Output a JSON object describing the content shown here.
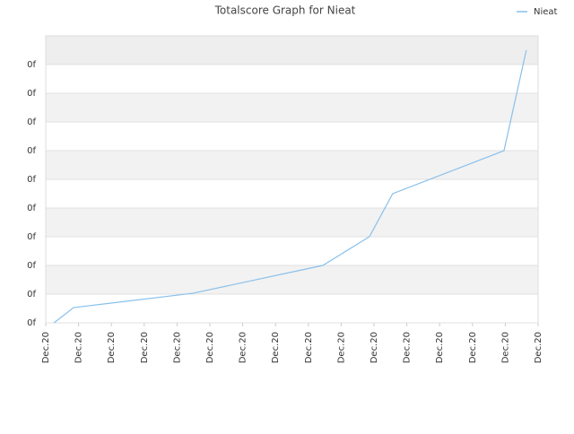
{
  "chart_data": {
    "type": "line",
    "title": "Totalscore Graph for Nieat",
    "x": [
      0.25,
      0.85,
      4.48,
      8.44,
      9.86,
      10.57,
      13.96,
      14.64
    ],
    "series": [
      {
        "name": "Nieat",
        "color": "#88c0eb",
        "values": [
          0,
          0.53,
          1.03,
          2,
          3,
          4.5,
          6,
          9.5
        ]
      }
    ],
    "xlim": [
      0,
      15
    ],
    "xticks": [
      {
        "value": 0,
        "label": "Dec.20"
      },
      {
        "value": 1,
        "label": "Dec.20"
      },
      {
        "value": 2,
        "label": "Dec.20"
      },
      {
        "value": 3,
        "label": "Dec.20"
      },
      {
        "value": 4,
        "label": "Dec.20"
      },
      {
        "value": 5,
        "label": "Dec.20"
      },
      {
        "value": 6,
        "label": "Dec.20"
      },
      {
        "value": 7,
        "label": "Dec.20"
      },
      {
        "value": 8,
        "label": "Dec.20"
      },
      {
        "value": 9,
        "label": "Dec.20"
      },
      {
        "value": 10,
        "label": "Dec.20"
      },
      {
        "value": 11,
        "label": "Dec.20"
      },
      {
        "value": 12,
        "label": "Dec.20"
      },
      {
        "value": 13,
        "label": "Dec.20"
      },
      {
        "value": 14,
        "label": "Dec.20"
      },
      {
        "value": 15,
        "label": "Dec.20"
      }
    ],
    "ylim": [
      0,
      10
    ],
    "yticks": [
      {
        "value": 0,
        "label": "0f"
      },
      {
        "value": 1,
        "label": "0f"
      },
      {
        "value": 2,
        "label": "0f"
      },
      {
        "value": 3,
        "label": "0f"
      },
      {
        "value": 4,
        "label": "0f"
      },
      {
        "value": 5,
        "label": "0f"
      },
      {
        "value": 6,
        "label": "0f"
      },
      {
        "value": 7,
        "label": "0f"
      },
      {
        "value": 8,
        "label": "0f"
      },
      {
        "value": 9,
        "label": "0f"
      }
    ],
    "grid": true,
    "legend": "top-right"
  }
}
